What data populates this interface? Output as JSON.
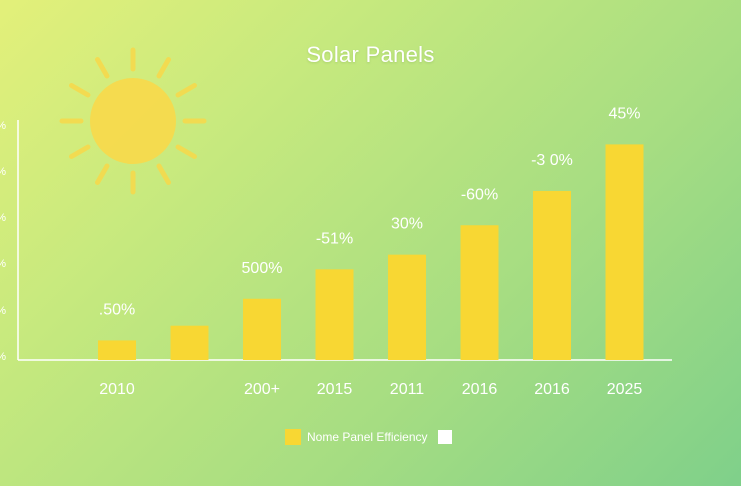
{
  "colors": {
    "bar": "#f8d733",
    "sun": "#f8d94a",
    "axis": "#ffffff",
    "text": "#ffffff"
  },
  "decoration": {
    "icon": "sun-icon"
  },
  "chart_data": {
    "type": "bar",
    "title": "Solar Panels",
    "xlabel": "",
    "ylabel": "",
    "categories": [
      "2010",
      "",
      "200+",
      "2015",
      "2011",
      "2016",
      "2016",
      "2025"
    ],
    "values": [
      4,
      7,
      12.5,
      18.5,
      21.5,
      27.5,
      34.5,
      44
    ],
    "data_labels": [
      ".50%",
      "",
      "500%",
      "-51%",
      "30%",
      "-60%",
      "-3 0%",
      "45%"
    ],
    "y_tick_labels": [
      "%",
      "%",
      "%",
      "%",
      "%",
      "%"
    ],
    "ylim": [
      0,
      50
    ],
    "grid": false,
    "legend": {
      "position": "bottom-center",
      "entries": [
        "Nome Panel Efficiency"
      ]
    }
  }
}
